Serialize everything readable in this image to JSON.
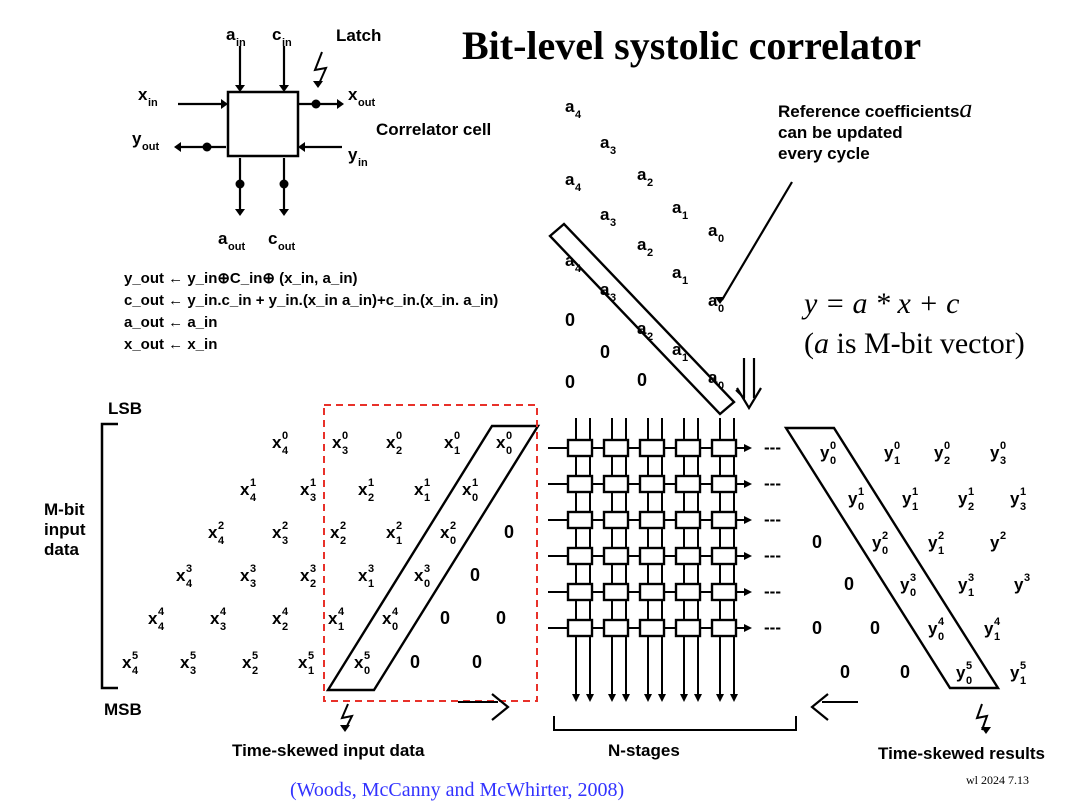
{
  "title": "Bit-level systolic correlator",
  "cell": {
    "inputs_top": [
      "a",
      "c"
    ],
    "input_sub": "in",
    "latch": "Latch",
    "x_in": "x",
    "x_out": "x",
    "y_out": "y",
    "y_in": "y",
    "sub_in": "in",
    "sub_out": "out",
    "outputs_bottom": [
      "a",
      "c"
    ],
    "label": "Correlator cell"
  },
  "equations": [
    "y₀ᵤₜ ← yᵢₙ ⊕ Cᵢₙ ⊕ (xᵢₙ, aᵢₙ)"
  ],
  "eq_lines": [
    "y_out ← y_in⊕C_in⊕ (x_in, a_in)",
    "c_out ← y_in.c_in + y_in.(x_in a_in)+c_in.(x_in. a_in)",
    "a_out ← a_in",
    "x_out ← x_in"
  ],
  "reference_note": [
    "Reference coefficients",
    "can be updated",
    "every cycle"
  ],
  "reference_symbol": "a",
  "model": {
    "line1": "y = a * x + c",
    "line2_prefix": "(",
    "line2_symbol": "a",
    "line2_rest": " is M-bit vector)"
  },
  "coeff_rows": [
    [
      "a4"
    ],
    [
      "a3"
    ],
    [
      "a4",
      "a2"
    ],
    [
      "a3",
      "a1"
    ],
    [
      "a2",
      "a0"
    ],
    [
      "a4",
      "a1"
    ],
    [
      "a3",
      "a0"
    ],
    [
      "0",
      "a2"
    ],
    [
      "0",
      "a1"
    ],
    [
      "0",
      "0",
      "a0"
    ]
  ],
  "side_labels": {
    "lsb": "LSB",
    "msb": "MSB",
    "mbit": [
      "M-bit",
      "input",
      "data"
    ]
  },
  "input_matrix_note": "x subscripts 4..0, superscripts 0..5",
  "bottom_labels": {
    "input": "Time-skewed input data",
    "stages": "N-stages",
    "results": "Time-skewed results"
  },
  "dashes": "---",
  "zero": "0",
  "citation": "(Woods, McCanny and McWhirter, 2008)",
  "footer": "wl 2024   7.13",
  "colors": {
    "dashed_box": "#e8312a",
    "citation": "#3333ff"
  }
}
